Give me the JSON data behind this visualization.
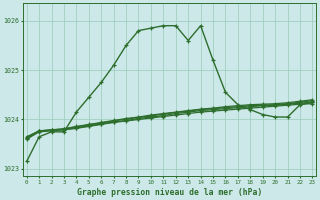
{
  "title": "Graphe pression niveau de la mer (hPa)",
  "x_labels": [
    "0",
    "1",
    "2",
    "3",
    "4",
    "5",
    "6",
    "7",
    "8",
    "9",
    "10",
    "11",
    "12",
    "13",
    "14",
    "15",
    "16",
    "17",
    "18",
    "19",
    "20",
    "21",
    "22",
    "23"
  ],
  "hours": [
    0,
    1,
    2,
    3,
    4,
    5,
    6,
    7,
    8,
    9,
    10,
    11,
    12,
    13,
    14,
    15,
    16,
    17,
    18,
    19,
    20,
    21,
    22,
    23
  ],
  "main_line": [
    1023.15,
    1023.65,
    1023.75,
    1023.75,
    1024.15,
    1024.45,
    1024.75,
    1025.1,
    1025.5,
    1025.8,
    1025.85,
    1025.9,
    1025.9,
    1025.6,
    1025.9,
    1025.2,
    1024.55,
    1024.3,
    1024.2,
    1024.1,
    1024.05,
    1024.05,
    1024.3,
    1024.35
  ],
  "flat_line1": [
    1023.6,
    1023.75,
    1023.77,
    1023.79,
    1023.82,
    1023.86,
    1023.9,
    1023.94,
    1023.97,
    1024.0,
    1024.03,
    1024.06,
    1024.09,
    1024.12,
    1024.15,
    1024.17,
    1024.19,
    1024.21,
    1024.23,
    1024.25,
    1024.27,
    1024.29,
    1024.31,
    1024.32
  ],
  "flat_line2": [
    1023.62,
    1023.76,
    1023.78,
    1023.8,
    1023.83,
    1023.87,
    1023.91,
    1023.95,
    1023.98,
    1024.02,
    1024.05,
    1024.08,
    1024.12,
    1024.15,
    1024.18,
    1024.2,
    1024.22,
    1024.24,
    1024.26,
    1024.28,
    1024.29,
    1024.31,
    1024.33,
    1024.35
  ],
  "flat_line3": [
    1023.63,
    1023.77,
    1023.79,
    1023.81,
    1023.85,
    1023.89,
    1023.93,
    1023.97,
    1024.01,
    1024.04,
    1024.07,
    1024.11,
    1024.14,
    1024.17,
    1024.2,
    1024.22,
    1024.24,
    1024.26,
    1024.28,
    1024.29,
    1024.3,
    1024.32,
    1024.35,
    1024.38
  ],
  "flat_line4": [
    1023.65,
    1023.77,
    1023.79,
    1023.81,
    1023.86,
    1023.9,
    1023.94,
    1023.98,
    1024.02,
    1024.05,
    1024.09,
    1024.12,
    1024.15,
    1024.18,
    1024.21,
    1024.23,
    1024.26,
    1024.28,
    1024.3,
    1024.31,
    1024.32,
    1024.34,
    1024.37,
    1024.4
  ],
  "line_color": "#2d6e2d",
  "bg_color": "#cce8e8",
  "grid_color": "#99ccbb",
  "ylim_min": 1022.85,
  "ylim_max": 1026.35,
  "yticks": [
    1023,
    1024,
    1025,
    1026
  ]
}
